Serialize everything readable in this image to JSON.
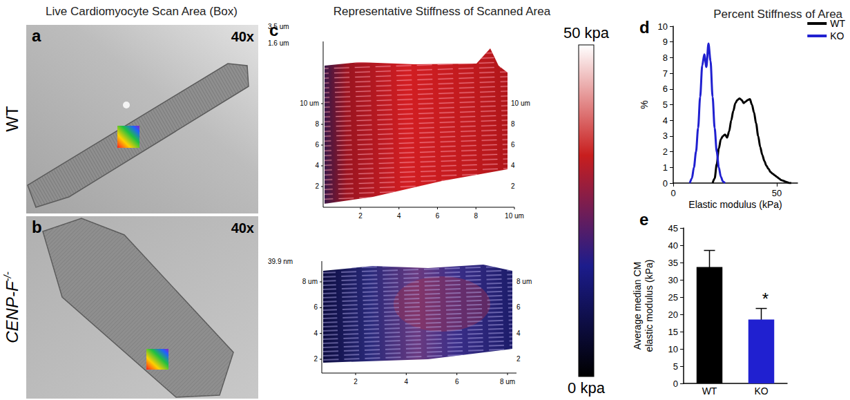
{
  "figure": {
    "headers": [
      "Live Cardiomyocyte Scan Area (Box)",
      "Representative Stiffness of Scanned Area"
    ],
    "rows": [
      {
        "panel": "a",
        "label": "WT",
        "magnification": "40x"
      },
      {
        "panel": "b",
        "label": "CENP-F",
        "label_sup": "-/-",
        "magnification": "40x"
      }
    ],
    "maps": {
      "panel": "c",
      "plots": [
        {
          "z_labels": [
            "3.5 um",
            "1.6 um"
          ],
          "left_ticks": [
            "2",
            "4",
            "6",
            "8",
            "10 um"
          ],
          "right_ticks": [
            "2",
            "4",
            "6",
            "8",
            "10 um"
          ],
          "bottom_ticks": [
            "2",
            "4",
            "6",
            "8",
            "10 um"
          ]
        },
        {
          "z_labels": [
            "39.9 nm"
          ],
          "left_ticks": [
            "2",
            "4",
            "6",
            "8 um"
          ],
          "right_ticks": [
            "2",
            "4",
            "6",
            "8 um"
          ],
          "bottom_ticks": [
            "2",
            "4",
            "6",
            "8 um"
          ]
        }
      ]
    },
    "colorbar": {
      "range": [
        0,
        50
      ],
      "ticks": [
        {
          "value": 50,
          "label": "50 kpa"
        },
        {
          "value": 0,
          "label": "0 kpa"
        }
      ],
      "colors": [
        "#000000",
        "#1c1c8c",
        "#c81e1e",
        "#ffffff"
      ]
    }
  },
  "chart_data": [
    {
      "panel": "d",
      "type": "line",
      "title": "Percent Stiffness of Area",
      "x": [
        8,
        9,
        10,
        11,
        12,
        13,
        14,
        15,
        16,
        17,
        18,
        19,
        20,
        21,
        22,
        23,
        24,
        25,
        26,
        27,
        28,
        29,
        30,
        31,
        32,
        33,
        34,
        35,
        36,
        37,
        38,
        39,
        40,
        41,
        42,
        43,
        44,
        45,
        46,
        47,
        48,
        49,
        50,
        51,
        52,
        53,
        54,
        55,
        56,
        57
      ],
      "series": [
        {
          "name": "WT",
          "color": "#000000",
          "values": [
            null,
            null,
            null,
            null,
            null,
            null,
            null,
            null,
            null,
            null,
            null,
            0,
            0.3,
            1.2,
            2.2,
            2.8,
            3.0,
            3.1,
            2.9,
            3.3,
            4.0,
            4.6,
            5.1,
            5.3,
            5.4,
            5.3,
            5.1,
            5.2,
            5.3,
            5.35,
            5.0,
            4.5,
            3.8,
            3.0,
            2.3,
            1.8,
            1.4,
            1.1,
            0.9,
            0.7,
            0.6,
            0.5,
            0.4,
            0.3,
            0.2,
            0.15,
            0.1,
            0.05,
            0,
            0
          ]
        },
        {
          "name": "KO",
          "color": "#2020d0",
          "values": [
            0,
            0.3,
            1.0,
            2.0,
            3.5,
            5.5,
            7.5,
            8.2,
            7.4,
            8.9,
            7.8,
            5.5,
            3.5,
            2.0,
            1.0,
            0.4,
            0.1,
            0,
            null,
            null,
            null,
            null,
            null,
            null,
            null,
            null,
            null,
            null,
            null,
            null,
            null,
            null,
            null,
            null,
            null,
            null,
            null,
            null,
            null,
            null,
            null,
            null,
            null,
            null,
            null,
            null,
            null,
            null,
            null,
            null
          ]
        }
      ],
      "xlabel": "Elastic modulus (kPa)",
      "ylabel": "%",
      "xlim": [
        0,
        60
      ],
      "xticks": [
        0,
        50
      ],
      "ylim": [
        0,
        10
      ],
      "yticks": [
        0,
        1,
        2,
        3,
        4,
        5,
        6,
        7,
        8,
        9,
        10
      ],
      "legend": "upper right",
      "grid": false
    },
    {
      "panel": "e",
      "type": "bar",
      "categories": [
        "WT",
        "KO"
      ],
      "values": [
        33.7,
        18.5
      ],
      "errors": [
        4.8,
        3.2
      ],
      "colors": [
        "#000000",
        "#2020d0"
      ],
      "ylabel": "Average median CM elastic modulus (kPa)",
      "ylim": [
        0,
        45
      ],
      "yticks": [
        0,
        5,
        10,
        15,
        20,
        25,
        30,
        35,
        40,
        45
      ],
      "annotations": [
        {
          "category": "KO",
          "text": "*"
        }
      ],
      "grid": false
    }
  ]
}
